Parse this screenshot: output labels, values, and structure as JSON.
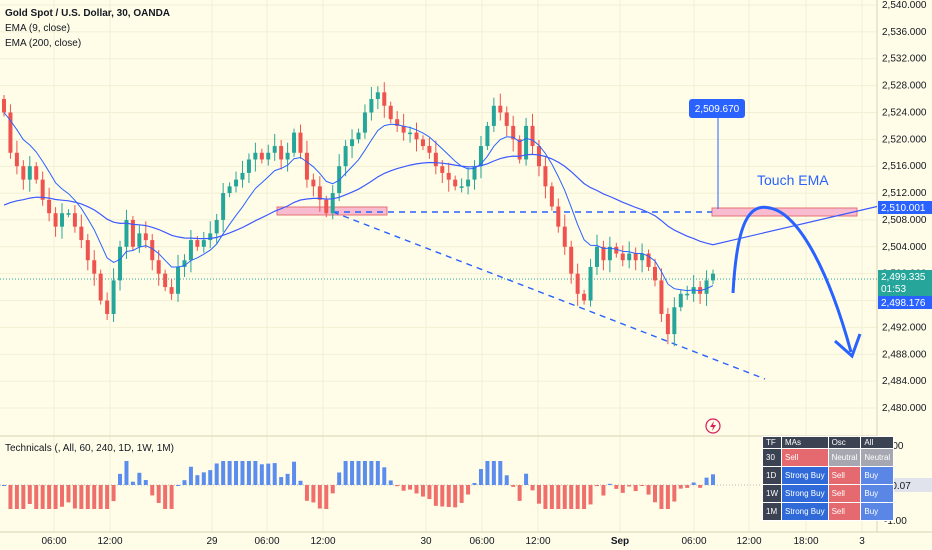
{
  "header": {
    "symbol_line": "Gold Spot / U.S. Dollar, 30, OANDA",
    "ema_fast": "EMA (9, close)",
    "ema_slow": "EMA (200, close)"
  },
  "annotations": {
    "touch_label": "Touch EMA",
    "target_price": "2,509.670"
  },
  "price_badges": {
    "ema200": "2,510.001",
    "last_price": "2,499.335",
    "countdown": "01:53",
    "ema9": "2,498.176",
    "last_price_partial": "2,500.000"
  },
  "colors": {
    "up": "#26a69a",
    "down": "#ef5350",
    "ema_fast": "#2962ff",
    "ema_slow": "#3d5afe",
    "zone_fill": "#f8bbd0",
    "zone_stroke": "#e57373",
    "dash": "#2962ff",
    "histogram_up": "#5b8def",
    "histogram_down": "#ef6f6c",
    "badge_blue": "#2962ff",
    "badge_green": "#26a69a"
  },
  "technicals": {
    "label": "Technicals (, All, 60, 240, 1D, 1W, 1M)",
    "axis": [
      "1.00",
      "-0.07",
      "-1.00"
    ],
    "current_value": "-0.07",
    "header": [
      "TF",
      "MAs",
      "Osc",
      "All"
    ],
    "rows": [
      [
        "30",
        "Sell",
        "Neutral",
        "Neutral"
      ],
      [
        "1D",
        "Strong Buy",
        "Sell",
        "Buy"
      ],
      [
        "1W",
        "Strong Buy",
        "Sell",
        "Buy"
      ],
      [
        "1M",
        "Strong Buy",
        "Sell",
        "Buy"
      ]
    ]
  },
  "chart_data": {
    "type": "candlestick",
    "title": "Gold Spot / U.S. Dollar, 30, OANDA",
    "y_ticks": [
      "2,540.000",
      "2,536.000",
      "2,532.000",
      "2,528.000",
      "2,524.000",
      "2,520.000",
      "2,516.000",
      "2,512.000",
      "2,508.000",
      "2,504.000",
      "2,500.000",
      "2,496.000",
      "2,492.000",
      "2,488.000",
      "2,484.000",
      "2,480.000"
    ],
    "ylim": [
      2476,
      2541
    ],
    "x_ticks": [
      "06:00",
      "12:00",
      "29",
      "06:00",
      "12:00",
      "30",
      "06:00",
      "12:00",
      "Sep",
      "06:00",
      "12:00",
      "18:00",
      "3"
    ],
    "horizontal_level": 2510.0,
    "closes": [
      2524,
      2518,
      2516,
      2514,
      2516,
      2514,
      2511,
      2509,
      2507,
      2509,
      2509,
      2507,
      2505,
      2502,
      2500,
      2496,
      2494,
      2499,
      2504,
      2508,
      2504,
      2506,
      2505,
      2502,
      2500,
      2498,
      2497,
      2501,
      2502,
      2505,
      2504,
      2505,
      2506,
      2508,
      2512,
      2513,
      2514,
      2515,
      2517,
      2518,
      2517,
      2518,
      2519,
      2517,
      2518,
      2521,
      2518,
      2514,
      2513,
      2511,
      2509,
      2512,
      2516,
      2519,
      2520,
      2521,
      2524,
      2526,
      2527,
      2525,
      2523,
      2522,
      2521,
      2521,
      2520,
      2519,
      2518,
      2516,
      2515,
      2514,
      2513,
      2513,
      2514,
      2516,
      2519,
      2522,
      2525,
      2524,
      2522,
      2520,
      2517,
      2522,
      2519,
      2516,
      2513,
      2510,
      2507,
      2504,
      2500,
      2497,
      2496,
      2501,
      2504,
      2502,
      2504,
      2503,
      2502,
      2503,
      2502,
      2503,
      2501,
      2499,
      2494,
      2491,
      2495,
      2497,
      2497,
      2498,
      2497,
      2499,
      2500
    ]
  }
}
